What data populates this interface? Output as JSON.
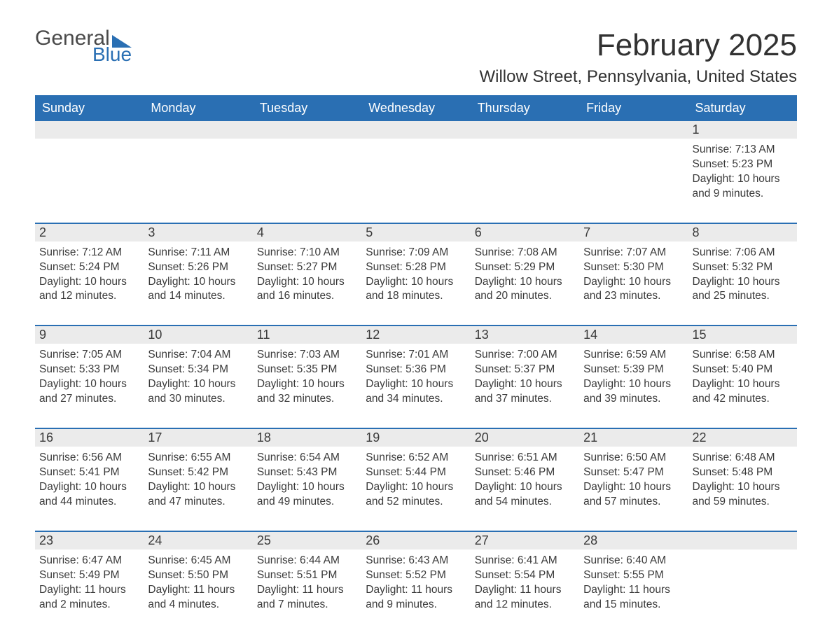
{
  "logo": {
    "line1": "General",
    "line2": "Blue"
  },
  "title": "February 2025",
  "location": "Willow Street, Pennsylvania, United States",
  "colors": {
    "header_bg": "#2a6fb3",
    "header_text": "#ffffff",
    "daynum_bg": "#ebebeb",
    "text": "#3a3a3a",
    "page_bg": "#ffffff",
    "week_border": "#2a6fb3"
  },
  "weekdays": [
    "Sunday",
    "Monday",
    "Tuesday",
    "Wednesday",
    "Thursday",
    "Friday",
    "Saturday"
  ],
  "weeks": [
    [
      null,
      null,
      null,
      null,
      null,
      null,
      {
        "n": "1",
        "sr": "7:13 AM",
        "ss": "5:23 PM",
        "dl": "10 hours and 9 minutes."
      }
    ],
    [
      {
        "n": "2",
        "sr": "7:12 AM",
        "ss": "5:24 PM",
        "dl": "10 hours and 12 minutes."
      },
      {
        "n": "3",
        "sr": "7:11 AM",
        "ss": "5:26 PM",
        "dl": "10 hours and 14 minutes."
      },
      {
        "n": "4",
        "sr": "7:10 AM",
        "ss": "5:27 PM",
        "dl": "10 hours and 16 minutes."
      },
      {
        "n": "5",
        "sr": "7:09 AM",
        "ss": "5:28 PM",
        "dl": "10 hours and 18 minutes."
      },
      {
        "n": "6",
        "sr": "7:08 AM",
        "ss": "5:29 PM",
        "dl": "10 hours and 20 minutes."
      },
      {
        "n": "7",
        "sr": "7:07 AM",
        "ss": "5:30 PM",
        "dl": "10 hours and 23 minutes."
      },
      {
        "n": "8",
        "sr": "7:06 AM",
        "ss": "5:32 PM",
        "dl": "10 hours and 25 minutes."
      }
    ],
    [
      {
        "n": "9",
        "sr": "7:05 AM",
        "ss": "5:33 PM",
        "dl": "10 hours and 27 minutes."
      },
      {
        "n": "10",
        "sr": "7:04 AM",
        "ss": "5:34 PM",
        "dl": "10 hours and 30 minutes."
      },
      {
        "n": "11",
        "sr": "7:03 AM",
        "ss": "5:35 PM",
        "dl": "10 hours and 32 minutes."
      },
      {
        "n": "12",
        "sr": "7:01 AM",
        "ss": "5:36 PM",
        "dl": "10 hours and 34 minutes."
      },
      {
        "n": "13",
        "sr": "7:00 AM",
        "ss": "5:37 PM",
        "dl": "10 hours and 37 minutes."
      },
      {
        "n": "14",
        "sr": "6:59 AM",
        "ss": "5:39 PM",
        "dl": "10 hours and 39 minutes."
      },
      {
        "n": "15",
        "sr": "6:58 AM",
        "ss": "5:40 PM",
        "dl": "10 hours and 42 minutes."
      }
    ],
    [
      {
        "n": "16",
        "sr": "6:56 AM",
        "ss": "5:41 PM",
        "dl": "10 hours and 44 minutes."
      },
      {
        "n": "17",
        "sr": "6:55 AM",
        "ss": "5:42 PM",
        "dl": "10 hours and 47 minutes."
      },
      {
        "n": "18",
        "sr": "6:54 AM",
        "ss": "5:43 PM",
        "dl": "10 hours and 49 minutes."
      },
      {
        "n": "19",
        "sr": "6:52 AM",
        "ss": "5:44 PM",
        "dl": "10 hours and 52 minutes."
      },
      {
        "n": "20",
        "sr": "6:51 AM",
        "ss": "5:46 PM",
        "dl": "10 hours and 54 minutes."
      },
      {
        "n": "21",
        "sr": "6:50 AM",
        "ss": "5:47 PM",
        "dl": "10 hours and 57 minutes."
      },
      {
        "n": "22",
        "sr": "6:48 AM",
        "ss": "5:48 PM",
        "dl": "10 hours and 59 minutes."
      }
    ],
    [
      {
        "n": "23",
        "sr": "6:47 AM",
        "ss": "5:49 PM",
        "dl": "11 hours and 2 minutes."
      },
      {
        "n": "24",
        "sr": "6:45 AM",
        "ss": "5:50 PM",
        "dl": "11 hours and 4 minutes."
      },
      {
        "n": "25",
        "sr": "6:44 AM",
        "ss": "5:51 PM",
        "dl": "11 hours and 7 minutes."
      },
      {
        "n": "26",
        "sr": "6:43 AM",
        "ss": "5:52 PM",
        "dl": "11 hours and 9 minutes."
      },
      {
        "n": "27",
        "sr": "6:41 AM",
        "ss": "5:54 PM",
        "dl": "11 hours and 12 minutes."
      },
      {
        "n": "28",
        "sr": "6:40 AM",
        "ss": "5:55 PM",
        "dl": "11 hours and 15 minutes."
      },
      null
    ]
  ],
  "labels": {
    "sunrise_prefix": "Sunrise: ",
    "sunset_prefix": "Sunset: ",
    "daylight_prefix": "Daylight: "
  }
}
